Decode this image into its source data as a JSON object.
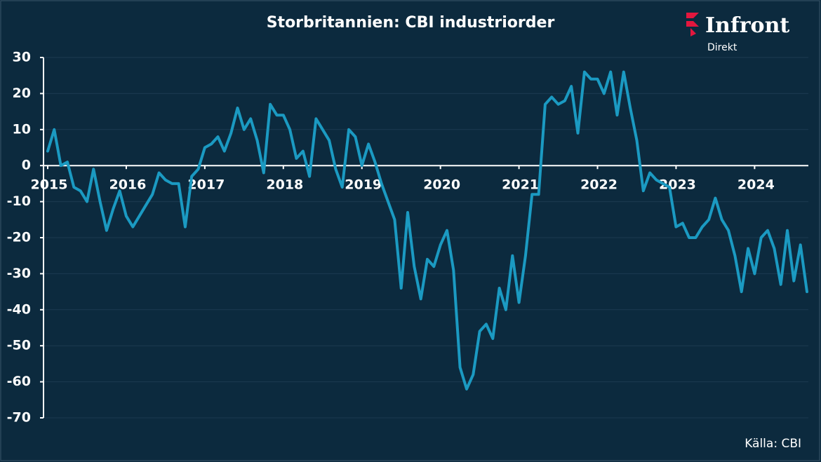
{
  "brand": {
    "name": "Infront",
    "sub": "Direkt"
  },
  "source": "Källa: CBI",
  "chart_data": {
    "type": "line",
    "title": "Storbritannien: CBI industriorder",
    "categories": [
      "2015",
      null,
      null,
      null,
      null,
      null,
      null,
      null,
      null,
      null,
      null,
      null,
      "2016",
      null,
      null,
      null,
      null,
      null,
      null,
      null,
      null,
      null,
      null,
      null,
      "2017",
      null,
      null,
      null,
      null,
      null,
      null,
      null,
      null,
      null,
      null,
      null,
      "2018",
      null,
      null,
      null,
      null,
      null,
      null,
      null,
      null,
      null,
      null,
      null,
      "2019",
      null,
      null,
      null,
      null,
      null,
      null,
      null,
      null,
      null,
      null,
      null,
      "2020",
      null,
      null,
      null,
      null,
      null,
      null,
      null,
      null,
      null,
      null,
      null,
      "2021",
      null,
      null,
      null,
      null,
      null,
      null,
      null,
      null,
      null,
      null,
      null,
      "2022",
      null,
      null,
      null,
      null,
      null,
      null,
      null,
      null,
      null,
      null,
      null,
      "2023",
      null,
      null,
      null,
      null,
      null,
      null,
      null,
      null,
      null,
      null,
      null,
      "2024",
      null,
      null,
      null,
      null,
      null,
      null,
      null,
      null
    ],
    "series": [
      {
        "name": "CBI industriorder",
        "color": "#1b9ac2",
        "values": [
          4,
          10,
          0,
          1,
          -6,
          -7,
          -10,
          -1,
          -10,
          -18,
          -12,
          -7,
          -14,
          -17,
          -14,
          -11,
          -8,
          -2,
          -4,
          -5,
          -5,
          -17,
          -3,
          -1,
          5,
          6,
          8,
          4,
          9,
          16,
          10,
          13,
          7,
          -2,
          17,
          14,
          14,
          10,
          2,
          4,
          -3,
          13,
          10,
          7,
          -1,
          -6,
          10,
          8,
          0,
          6,
          1,
          -5,
          -10,
          -15,
          -34,
          -13,
          -28,
          -37,
          -26,
          -28,
          -22,
          -18,
          -29,
          -56,
          -62,
          -58,
          -46,
          -44,
          -48,
          -34,
          -40,
          -25,
          -38,
          -25,
          -8,
          -8,
          17,
          19,
          17,
          18,
          22,
          9,
          26,
          24,
          24,
          20,
          26,
          14,
          26,
          16,
          7,
          -7,
          -2,
          -4,
          -5,
          -6,
          -17,
          -16,
          -20,
          -20,
          -17,
          -15,
          -9,
          -15,
          -18,
          -25,
          -35,
          -23,
          -30,
          -20,
          -18,
          -23,
          -33,
          -18,
          -32,
          -22,
          -35
        ]
      }
    ],
    "ylim": [
      -70,
      30
    ],
    "yticks": [
      30,
      20,
      10,
      0,
      -10,
      -20,
      -30,
      -40,
      -50,
      -60,
      -70
    ],
    "grid": true
  }
}
